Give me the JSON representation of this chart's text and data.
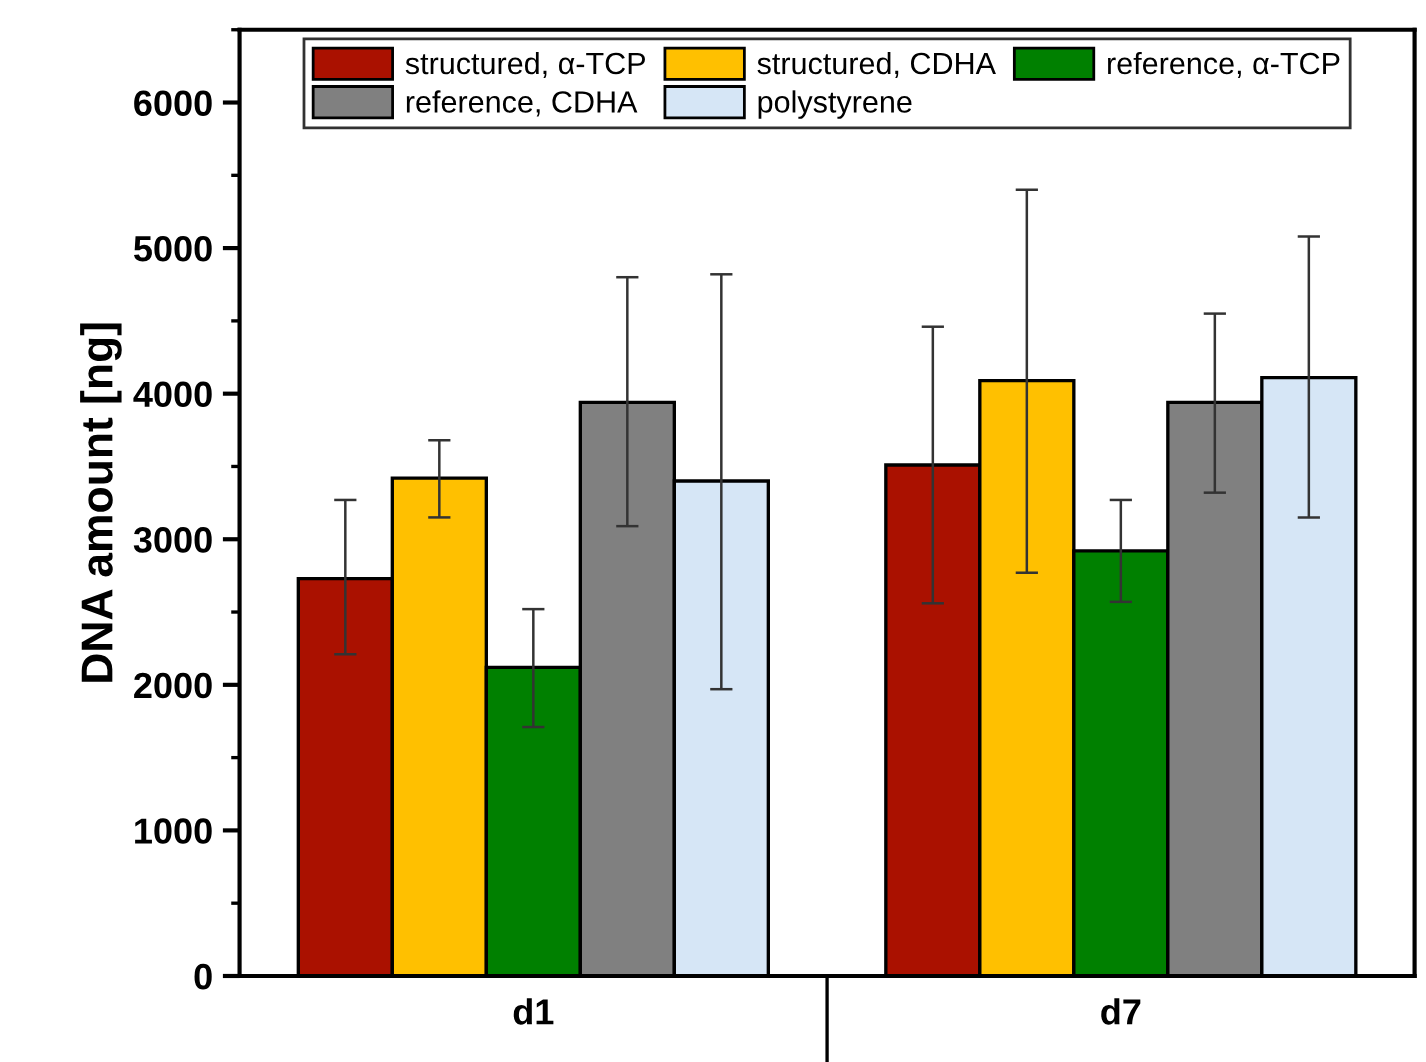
{
  "chart_data": {
    "type": "bar",
    "ylabel": "DNA amount [ng]",
    "categories": [
      "d1",
      "d7"
    ],
    "series": [
      {
        "name": "structured, α-TCP",
        "color": "#aa1100",
        "values": [
          2730,
          3510
        ],
        "errors": [
          [
            2210,
            3270
          ],
          [
            2560,
            4460
          ]
        ]
      },
      {
        "name": "structured, CDHA",
        "color": "#ffc000",
        "values": [
          3420,
          4090
        ],
        "errors": [
          [
            3150,
            3680
          ],
          [
            2770,
            5400
          ]
        ]
      },
      {
        "name": "reference, α-TCP",
        "color": "#008000",
        "values": [
          2120,
          2920
        ],
        "errors": [
          [
            1710,
            2520
          ],
          [
            2570,
            3270
          ]
        ]
      },
      {
        "name": "reference, CDHA",
        "color": "#808080",
        "values": [
          3940,
          3940
        ],
        "errors": [
          [
            3090,
            4800
          ],
          [
            3320,
            4550
          ]
        ]
      },
      {
        "name": "polystyrene",
        "color": "#d6e6f6",
        "values": [
          3400,
          4110
        ],
        "errors": [
          [
            1970,
            4820
          ],
          [
            3150,
            5080
          ]
        ]
      }
    ],
    "ylim": [
      0,
      6500
    ],
    "yticks": [
      0,
      1000,
      2000,
      3000,
      4000,
      5000,
      6000
    ],
    "grid": false,
    "legend": "top"
  }
}
